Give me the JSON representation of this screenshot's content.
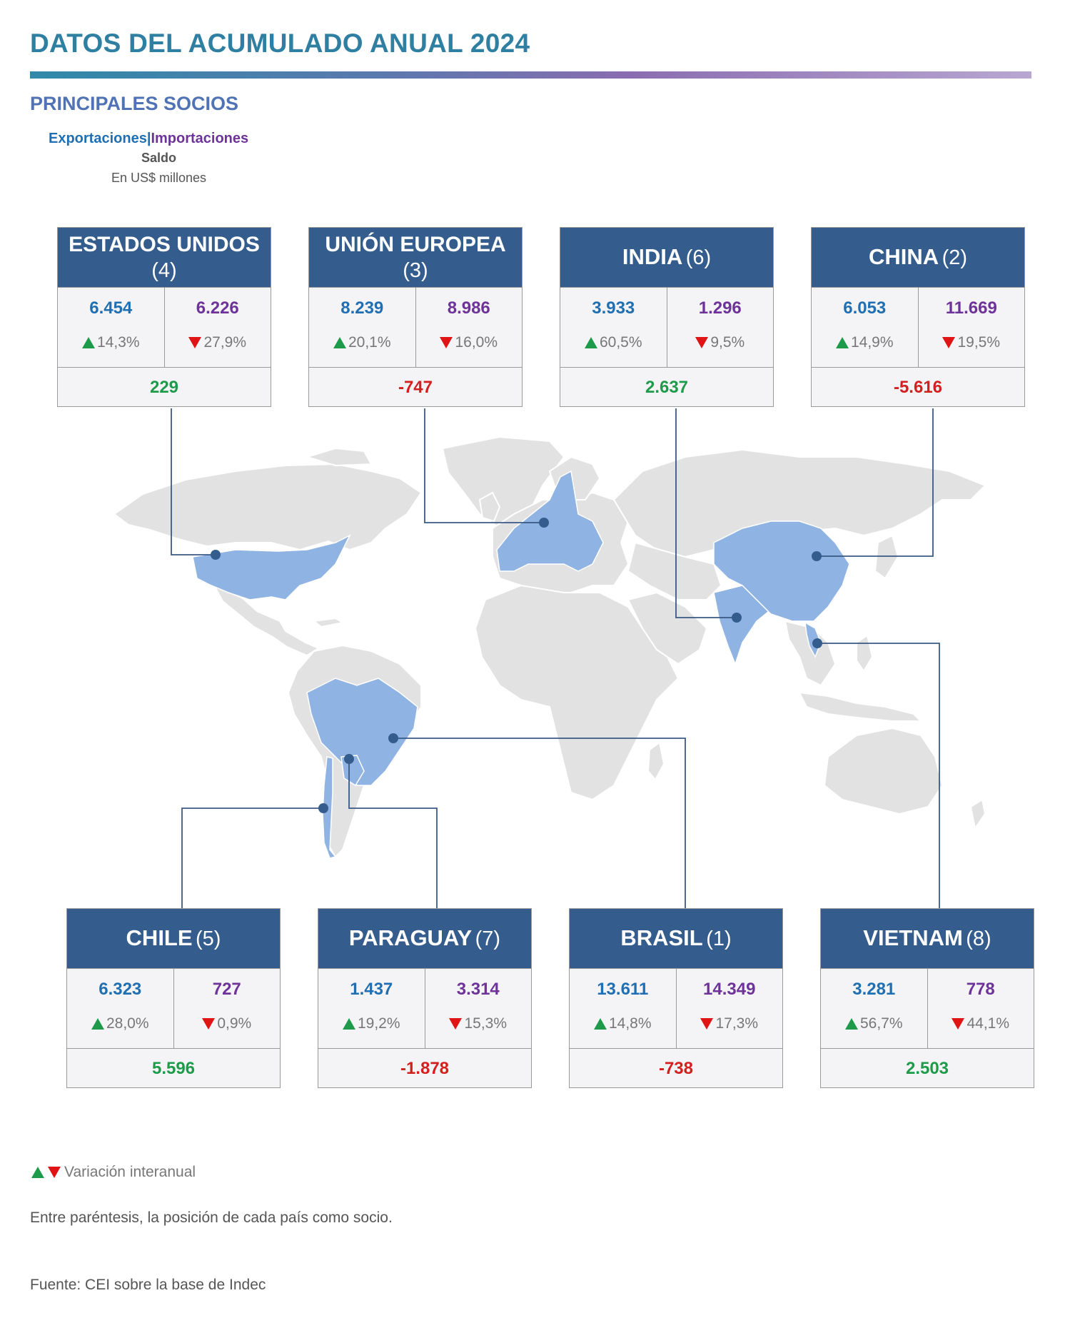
{
  "header": {
    "title": "DATOS DEL ACUMULADO ANUAL 2024",
    "subtitle": "PRINCIPALES SOCIOS"
  },
  "legend": {
    "exports": "Exportaciones",
    "separator": "|",
    "imports": "Importaciones",
    "balance": "Saldo",
    "units": "En US$ millones"
  },
  "partners": {
    "estados_unidos": {
      "name": "ESTADOS UNIDOS",
      "rank": "(4)",
      "exports": "6.454",
      "exports_var": "14,3%",
      "imports": "6.226",
      "imports_var": "27,9%",
      "balance": "229"
    },
    "union_europea": {
      "name": "UNIÓN EUROPEA",
      "rank": "(3)",
      "exports": "8.239",
      "exports_var": "20,1%",
      "imports": "8.986",
      "imports_var": "16,0%",
      "balance": "-747"
    },
    "india": {
      "name": "INDIA",
      "rank": "(6)",
      "exports": "3.933",
      "exports_var": "60,5%",
      "imports": "1.296",
      "imports_var": "9,5%",
      "balance": "2.637"
    },
    "china": {
      "name": "CHINA",
      "rank": "(2)",
      "exports": "6.053",
      "exports_var": "14,9%",
      "imports": "11.669",
      "imports_var": "19,5%",
      "balance": "-5.616"
    },
    "chile": {
      "name": "CHILE",
      "rank": "(5)",
      "exports": "6.323",
      "exports_var": "28,0%",
      "imports": "727",
      "imports_var": "0,9%",
      "balance": "5.596"
    },
    "paraguay": {
      "name": "PARAGUAY",
      "rank": "(7)",
      "exports": "1.437",
      "exports_var": "19,2%",
      "imports": "3.314",
      "imports_var": "15,3%",
      "balance": "-1.878"
    },
    "brasil": {
      "name": "BRASIL",
      "rank": "(1)",
      "exports": "13.611",
      "exports_var": "14,8%",
      "imports": "14.349",
      "imports_var": "17,3%",
      "balance": "-738"
    },
    "vietnam": {
      "name": "VIETNAM",
      "rank": "(8)",
      "exports": "3.281",
      "exports_var": "56,7%",
      "imports": "778",
      "imports_var": "44,1%",
      "balance": "2.503"
    }
  },
  "footer": {
    "variation_label": "Variación interanual",
    "note": "Entre paréntesis, la posición de cada país como socio.",
    "source": "Fuente: CEI sobre la base de Indec"
  },
  "colors": {
    "header_bg": "#345d8d",
    "exports": "#1f6fb2",
    "imports": "#6d3399",
    "positive": "#1e9b4a",
    "negative": "#d41f1f",
    "land": "#e2e2e2",
    "highlight": "#8fb3e2"
  }
}
